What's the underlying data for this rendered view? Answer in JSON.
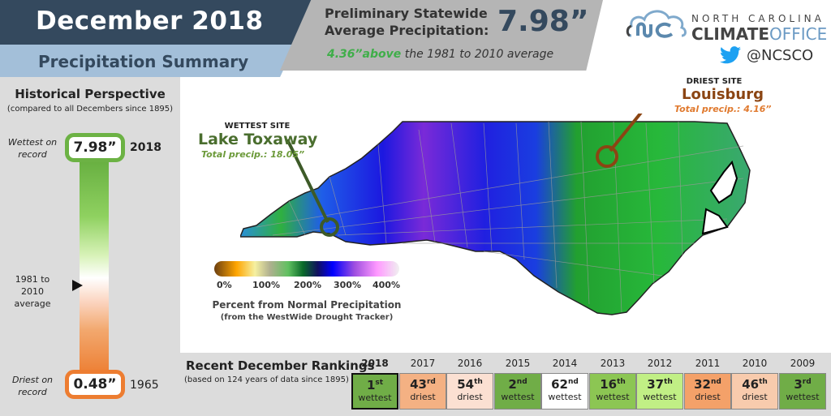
{
  "header": {
    "title": "December 2018",
    "subtitle": "Precipitation Summary",
    "prelim_label_line1": "Preliminary Statewide",
    "prelim_label_line2": "Average Precipitation:",
    "prelim_value": "7.98”",
    "anomaly_value": "4.36”above",
    "anomaly_text": " the 1981 to 2010 average"
  },
  "logo": {
    "line1": "NORTH CAROLINA",
    "line2_bold": "CLIMATE",
    "line2_light": "OFFICE",
    "twitter_handle": "@NCSCO",
    "icons": [
      "cloud-nc-logo-icon",
      "twitter-bird-icon"
    ]
  },
  "colors": {
    "navy": "#34495e",
    "light_blue": "#a3bfd9",
    "gray": "#b5b5b5",
    "wet_green": "#6cb244",
    "dry_orange": "#ed7d31",
    "anomaly_green": "#3fae49"
  },
  "historical": {
    "title": "Historical Perspective",
    "subtitle": "(compared to all Decembers since 1895)",
    "wettest_label_1": "Wettest on",
    "wettest_label_2": "record",
    "wettest_value": "7.98”",
    "wettest_year": "2018",
    "average_label_1": "1981 to 2010",
    "average_label_2": "average",
    "driest_label_1": "Driest on",
    "driest_label_2": "record",
    "driest_value": "0.48”",
    "driest_year": "1965"
  },
  "map": {
    "wettest_site": {
      "header": "WETTEST SITE",
      "name": "Lake Toxaway",
      "total": "Total precip.: 18.05”"
    },
    "driest_site": {
      "header": "DRIEST SITE",
      "name": "Louisburg",
      "total": "Total precip.: 4.16”"
    },
    "legend": {
      "ticks": [
        "0%",
        "100%",
        "200%",
        "300%",
        "400%"
      ],
      "title": "Percent from Normal Precipitation",
      "subtitle": "(from the WestWide Drought Tracker)"
    }
  },
  "rankings": {
    "title": "Recent December Rankings",
    "subtitle": "(based on 124 years of data since 1895)",
    "items": [
      {
        "year": "2018",
        "rank": "1",
        "suffix": "st",
        "type": "wettest",
        "color": "#70ad47"
      },
      {
        "year": "2017",
        "rank": "43",
        "suffix": "rd",
        "type": "driest",
        "color": "#f4b183"
      },
      {
        "year": "2016",
        "rank": "54",
        "suffix": "th",
        "type": "driest",
        "color": "#fbe0d2"
      },
      {
        "year": "2015",
        "rank": "2",
        "suffix": "nd",
        "type": "wettest",
        "color": "#70ad47"
      },
      {
        "year": "2014",
        "rank": "62",
        "suffix": "nd",
        "type": "wettest",
        "color": "#ffffff"
      },
      {
        "year": "2013",
        "rank": "16",
        "suffix": "th",
        "type": "wettest",
        "color": "#8cc653"
      },
      {
        "year": "2012",
        "rank": "37",
        "suffix": "th",
        "type": "wettest",
        "color": "#c1ef85"
      },
      {
        "year": "2011",
        "rank": "32",
        "suffix": "nd",
        "type": "driest",
        "color": "#f4a169"
      },
      {
        "year": "2010",
        "rank": "46",
        "suffix": "th",
        "type": "driest",
        "color": "#f8cbad"
      },
      {
        "year": "2009",
        "rank": "3",
        "suffix": "rd",
        "type": "wettest",
        "color": "#70ad47"
      }
    ]
  }
}
